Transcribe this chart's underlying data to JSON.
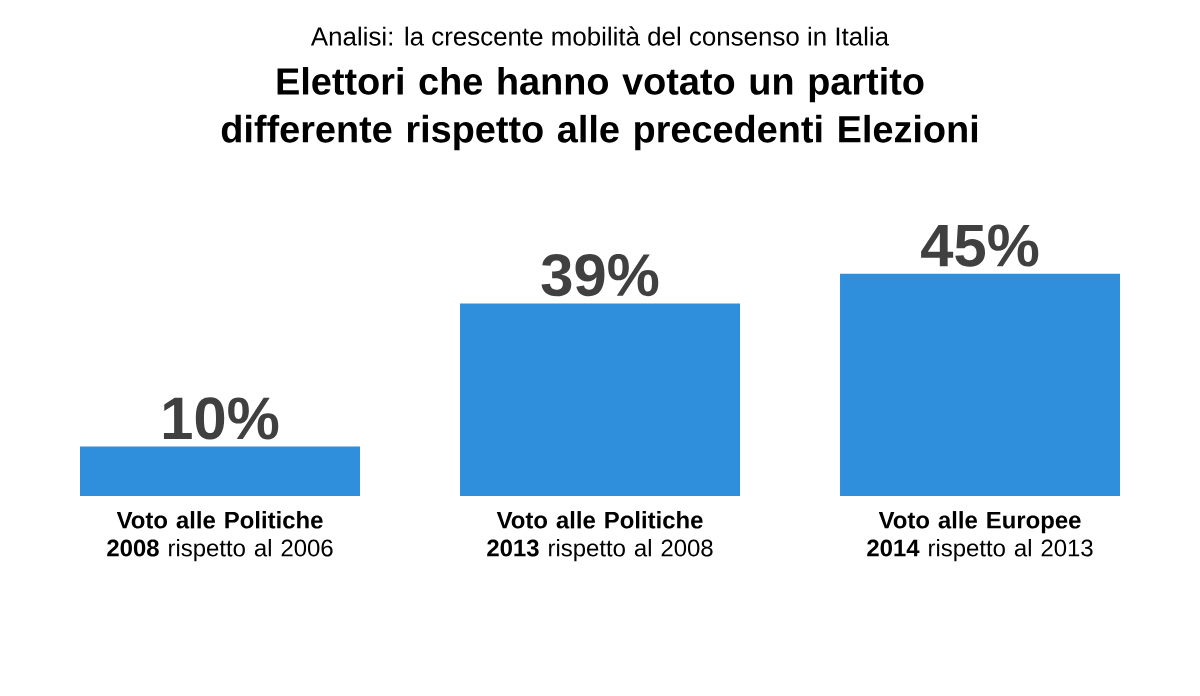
{
  "chart_data": {
    "type": "bar",
    "subtitle": "Analisi: la crescente mobilità del consenso in Italia",
    "title": "Elettori che hanno votato un partito differente rispetto alle precedenti Elezioni",
    "categories": [
      "**Voto alle Politiche 2008** rispetto al 2006",
      "**Voto alle Politiche 2013** rispetto al 2008",
      "**Voto alle Europee 2014** rispetto al 2013"
    ],
    "values": [
      10,
      39,
      45
    ],
    "value_labels": [
      "10%",
      "39%",
      "45%"
    ],
    "color": "#2f8fdc"
  }
}
